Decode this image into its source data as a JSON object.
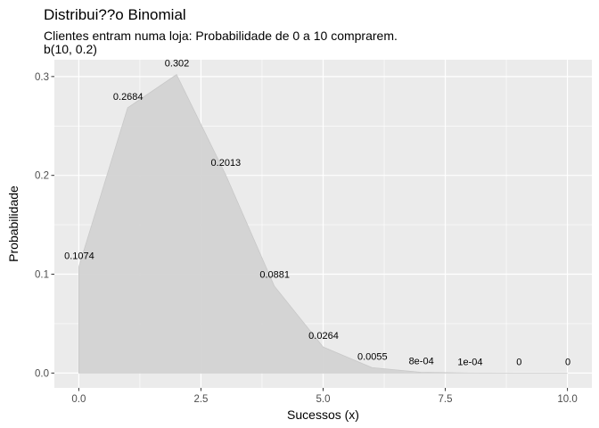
{
  "chart_data": {
    "type": "area",
    "title": "Distribui??o Binomial",
    "subtitle": "Clientes entram numa loja: Probabilidade de 0 a 10 comprarem.\nb(10, 0.2)",
    "xlabel": "Sucessos (x)",
    "ylabel": "Probabilidade",
    "x": [
      0,
      1,
      2,
      3,
      4,
      5,
      6,
      7,
      8,
      9,
      10
    ],
    "values": [
      0.1074,
      0.2684,
      0.302,
      0.2013,
      0.0881,
      0.0264,
      0.0055,
      0.0008,
      0.0001,
      0,
      0
    ],
    "data_labels": [
      "0.1074",
      "0.2684",
      "0.302",
      "0.2013",
      "0.0881",
      "0.0264",
      "0.0055",
      "8e-04",
      "1e-04",
      "0",
      "0"
    ],
    "xlim": [
      -0.5,
      10.5
    ],
    "ylim": [
      -0.015,
      0.317
    ],
    "x_ticks": [
      0,
      2.5,
      5,
      7.5,
      10
    ],
    "x_tick_labels": [
      "0.0",
      "2.5",
      "5.0",
      "7.5",
      "10.0"
    ],
    "y_ticks": [
      0,
      0.1,
      0.2,
      0.3
    ],
    "y_tick_labels": [
      "0.0",
      "0.1",
      "0.2",
      "0.3"
    ],
    "grid": true,
    "legend": "none",
    "colors": {
      "panel": "#EBEBEB",
      "grid": "#FFFFFF",
      "area": "#D3D3D3",
      "area_line": "#C8C8C8",
      "text": "#000000",
      "tick_text": "#4D4D4D"
    }
  }
}
